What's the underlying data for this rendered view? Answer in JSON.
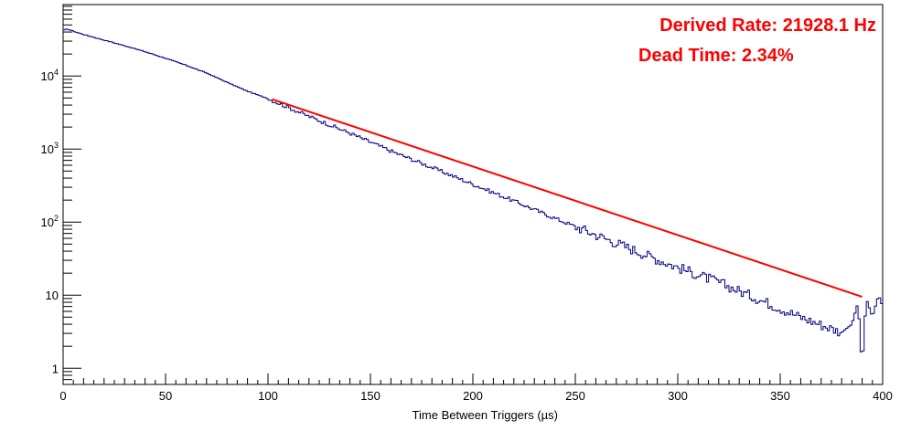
{
  "chart_data": {
    "type": "line",
    "xlabel": "Time Between Triggers (µs)",
    "xlim": [
      0,
      400
    ],
    "ylim": [
      0.6,
      95000
    ],
    "y_scale": "log",
    "x_ticks": [
      "0",
      "50",
      "100",
      "150",
      "200",
      "250",
      "300",
      "350",
      "400"
    ],
    "y_ticks": [
      {
        "value": 1,
        "base": "1",
        "exp": ""
      },
      {
        "value": 10,
        "base": "10",
        "exp": ""
      },
      {
        "value": 100,
        "base": "10",
        "exp": "2"
      },
      {
        "value": 1000,
        "base": "10",
        "exp": "3"
      },
      {
        "value": 10000,
        "base": "10",
        "exp": "4"
      }
    ],
    "grid": false,
    "annotations": [
      "Derived Rate: 21928.1 Hz",
      "Dead Time: 2.34%"
    ],
    "annotation_color": "#ff0000",
    "series": [
      {
        "kind": "histogram",
        "color": "#000080",
        "bin_width_us": 1,
        "x": [
          0,
          2,
          5,
          10,
          20,
          30,
          40,
          50,
          60,
          70,
          80,
          90,
          100,
          120,
          140,
          160,
          180,
          200,
          220,
          240,
          260,
          280,
          300,
          320,
          340,
          360,
          380,
          385,
          388,
          390,
          392,
          395,
          398,
          400
        ],
        "values": [
          42000,
          44000,
          41000,
          37000,
          31000,
          26000,
          21500,
          17500,
          14000,
          11000,
          8200,
          6200,
          4900,
          2800,
          1650,
          940,
          560,
          330,
          195,
          113,
          67,
          40,
          24,
          15,
          8.7,
          5,
          3.1,
          4,
          8,
          1,
          9,
          5,
          10,
          7
        ]
      },
      {
        "kind": "fit",
        "color": "#ff0000",
        "x": [
          102,
          390
        ],
        "values": [
          4800,
          9.5
        ]
      }
    ]
  }
}
